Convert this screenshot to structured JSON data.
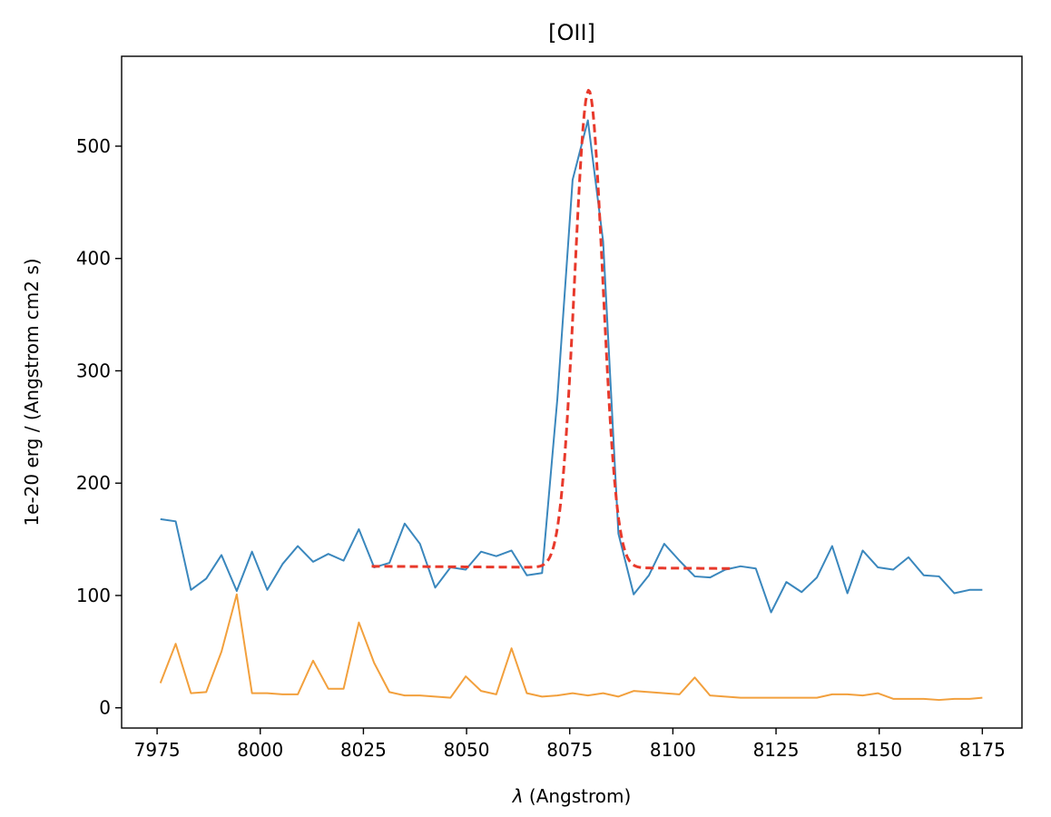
{
  "chart_data": {
    "type": "line",
    "title": "[OII]",
    "xlabel_symbol": "λ",
    "xlabel_text": " (Angstrom)",
    "ylabel": "1e-20 erg / (Angstrom cm2 s)",
    "xlim": [
      7966.4,
      8184.6
    ],
    "ylim": [
      -18,
      580
    ],
    "xticks": [
      7975,
      8000,
      8025,
      8050,
      8075,
      8100,
      8125,
      8150,
      8175
    ],
    "yticks": [
      0,
      100,
      200,
      300,
      400,
      500
    ],
    "grid": false,
    "series": [
      {
        "id": "flux",
        "color": "#3a87bd",
        "dash": "",
        "width": 2,
        "x": [
          7975.8,
          7979.5,
          7983.2,
          7986.9,
          7990.6,
          7994.3,
          7998.0,
          8001.7,
          8005.4,
          8009.1,
          8012.8,
          8016.5,
          8020.2,
          8023.9,
          8027.6,
          8031.3,
          8035.0,
          8038.7,
          8042.4,
          8046.1,
          8049.8,
          8053.5,
          8057.2,
          8060.9,
          8064.6,
          8068.3,
          8072.0,
          8075.7,
          8079.4,
          8083.1,
          8086.8,
          8090.5,
          8094.2,
          8097.9,
          8101.6,
          8105.3,
          8109.0,
          8112.7,
          8116.4,
          8120.1,
          8123.8,
          8127.5,
          8131.2,
          8134.9,
          8138.6,
          8142.3,
          8146.0,
          8149.7,
          8153.4,
          8157.1,
          8160.8,
          8164.5,
          8168.2,
          8171.9,
          8175.0
        ],
        "values": [
          168,
          166,
          105,
          115,
          136,
          104,
          139,
          105,
          128,
          144,
          130,
          137,
          131,
          159,
          125,
          129,
          164,
          146,
          107,
          125,
          123,
          139,
          135,
          140,
          118,
          120,
          275,
          470,
          523,
          415,
          155,
          101,
          118,
          146,
          131,
          117,
          116,
          123,
          126,
          124,
          85,
          112,
          103,
          116,
          144,
          102,
          140,
          125,
          123,
          134,
          118,
          117,
          102,
          105,
          105
        ]
      },
      {
        "id": "error",
        "color": "#f2a03d",
        "dash": "",
        "width": 2,
        "x": [
          7975.8,
          7979.5,
          7983.2,
          7986.9,
          7990.6,
          7994.3,
          7998.0,
          8001.7,
          8005.4,
          8009.1,
          8012.8,
          8016.5,
          8020.2,
          8023.9,
          8027.6,
          8031.3,
          8035.0,
          8038.7,
          8042.4,
          8046.1,
          8049.8,
          8053.5,
          8057.2,
          8060.9,
          8064.6,
          8068.3,
          8072.0,
          8075.7,
          8079.4,
          8083.1,
          8086.8,
          8090.5,
          8094.2,
          8097.9,
          8101.6,
          8105.3,
          8109.0,
          8112.7,
          8116.4,
          8120.1,
          8123.8,
          8127.5,
          8131.2,
          8134.9,
          8138.6,
          8142.3,
          8146.0,
          8149.7,
          8153.4,
          8157.1,
          8160.8,
          8164.5,
          8168.2,
          8171.9,
          8175.0
        ],
        "values": [
          22,
          57,
          13,
          14,
          50,
          101,
          13,
          13,
          12,
          12,
          42,
          17,
          17,
          76,
          40,
          14,
          11,
          11,
          10,
          9,
          28,
          15,
          12,
          53,
          13,
          10,
          11,
          13,
          11,
          13,
          10,
          15,
          14,
          13,
          12,
          27,
          11,
          10,
          9,
          9,
          9,
          9,
          9,
          9,
          12,
          12,
          11,
          13,
          8,
          8,
          8,
          7,
          8,
          8,
          9
        ]
      },
      {
        "id": "fit",
        "color": "#e8392b",
        "dash": "9,5",
        "width": 3,
        "fit_x_range": [
          8027.0,
          8114.0
        ],
        "fit_continuum_start": 126,
        "fit_continuum_end": 124,
        "fit_amplitude": 425,
        "fit_center": 8079.6,
        "fit_sigma": 3.4
      }
    ]
  }
}
